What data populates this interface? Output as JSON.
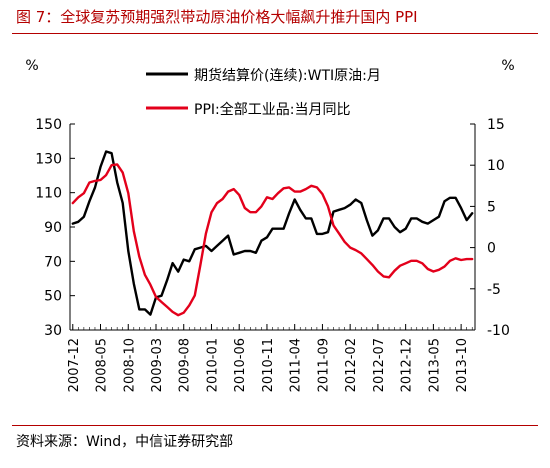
{
  "header": {
    "title": "图 7：全球复苏预期强烈带动原油价格大幅飙升推升国内 PPI"
  },
  "footer": {
    "source": "资料来源：Wind，中信证券研究部"
  },
  "chart_data": {
    "type": "line",
    "left_unit": "%",
    "right_unit": "%",
    "left_ylim": [
      30,
      150
    ],
    "left_ticks": [
      150,
      130,
      110,
      90,
      70,
      50,
      30
    ],
    "right_ylim": [
      -10,
      15
    ],
    "right_ticks": [
      15,
      10,
      5,
      0,
      -5,
      -10
    ],
    "x_tick_labels": [
      "2007-12",
      "2008-05",
      "2008-10",
      "2009-03",
      "2009-08",
      "2010-01",
      "2010-06",
      "2010-11",
      "2011-04",
      "2011-09",
      "2012-02",
      "2012-07",
      "2012-12",
      "2013-05",
      "2013-10"
    ],
    "x_dates": [
      "2007-12",
      "2008-01",
      "2008-02",
      "2008-03",
      "2008-04",
      "2008-05",
      "2008-06",
      "2008-07",
      "2008-08",
      "2008-09",
      "2008-10",
      "2008-11",
      "2008-12",
      "2009-01",
      "2009-02",
      "2009-03",
      "2009-04",
      "2009-05",
      "2009-06",
      "2009-07",
      "2009-08",
      "2009-09",
      "2009-10",
      "2009-11",
      "2009-12",
      "2010-01",
      "2010-02",
      "2010-03",
      "2010-04",
      "2010-05",
      "2010-06",
      "2010-07",
      "2010-08",
      "2010-09",
      "2010-10",
      "2010-11",
      "2010-12",
      "2011-01",
      "2011-02",
      "2011-03",
      "2011-04",
      "2011-05",
      "2011-06",
      "2011-07",
      "2011-08",
      "2011-09",
      "2011-10",
      "2011-11",
      "2011-12",
      "2012-01",
      "2012-02",
      "2012-03",
      "2012-04",
      "2012-05",
      "2012-06",
      "2012-07",
      "2012-08",
      "2012-09",
      "2012-10",
      "2012-11",
      "2012-12",
      "2013-01",
      "2013-02",
      "2013-03",
      "2013-04",
      "2013-05",
      "2013-06",
      "2013-07",
      "2013-08",
      "2013-09",
      "2013-10",
      "2013-11",
      "2013-12"
    ],
    "series": [
      {
        "name": "期货结算价(连续):WTI原油:月",
        "axis": "left",
        "color": "#000000",
        "values": [
          92,
          93,
          96,
          105,
          113,
          125,
          134,
          133,
          116,
          104,
          76,
          57,
          42,
          42,
          39,
          49,
          50,
          59,
          69,
          64,
          71,
          70,
          77,
          78,
          79,
          76,
          79,
          82,
          85,
          74,
          75,
          76,
          76,
          75,
          82,
          84,
          89,
          89,
          89,
          98,
          106,
          100,
          95,
          95,
          86,
          86,
          87,
          99,
          100,
          101,
          103,
          106,
          104,
          94,
          85,
          88,
          95,
          95,
          90,
          87,
          89,
          95,
          95,
          93,
          92,
          94,
          96,
          105,
          107,
          107,
          101,
          94,
          98
        ]
      },
      {
        "name": "PPI:全部工业品:当月同比",
        "axis": "right",
        "color": "#e3001b",
        "values": [
          5.4,
          6.1,
          6.6,
          7.9,
          8.1,
          8.2,
          8.8,
          10.0,
          10.1,
          9.1,
          6.6,
          2.0,
          -1.1,
          -3.3,
          -4.5,
          -6.0,
          -6.6,
          -7.2,
          -7.8,
          -8.2,
          -7.9,
          -7.0,
          -5.8,
          -2.1,
          1.7,
          4.3,
          5.4,
          5.9,
          6.8,
          7.1,
          6.4,
          4.8,
          4.3,
          4.3,
          5.0,
          6.1,
          5.9,
          6.6,
          7.2,
          7.3,
          6.8,
          6.8,
          7.1,
          7.5,
          7.3,
          6.5,
          5.0,
          2.7,
          1.7,
          0.7,
          0.0,
          -0.3,
          -0.7,
          -1.4,
          -2.1,
          -2.9,
          -3.5,
          -3.6,
          -2.8,
          -2.2,
          -1.9,
          -1.6,
          -1.6,
          -1.9,
          -2.6,
          -2.9,
          -2.7,
          -2.3,
          -1.6,
          -1.3,
          -1.5,
          -1.4,
          -1.4
        ]
      }
    ]
  }
}
